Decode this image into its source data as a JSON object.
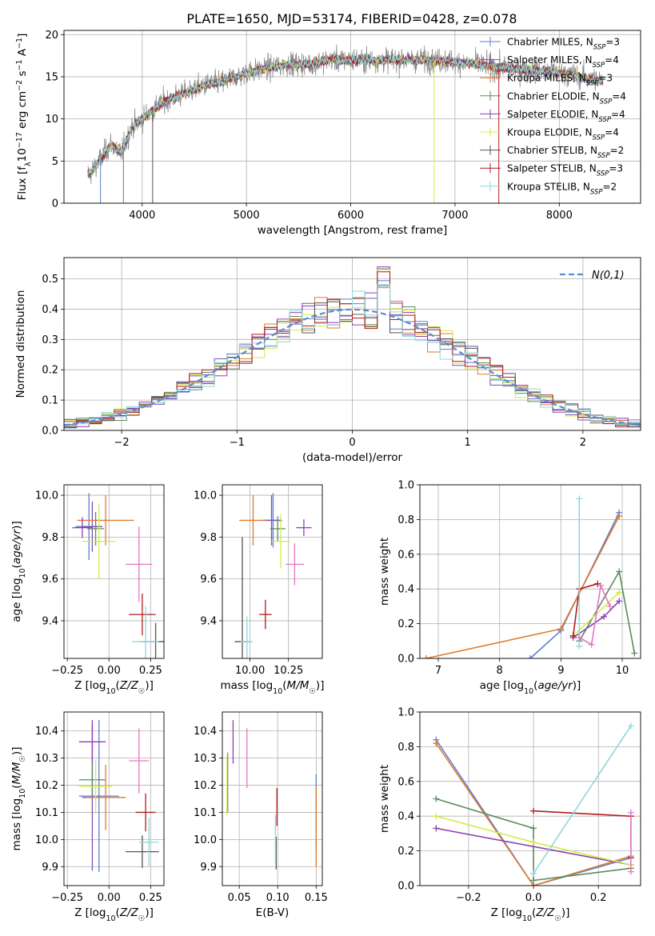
{
  "title": "PLATE=1650, MJD=53174, FIBERID=0428, z=0.078",
  "colors": {
    "Chabrier MILES": "#5b7fd0",
    "Salpeter MILES": "#7a52b3",
    "Kroupa MILES": "#e07b2b",
    "Chabrier ELODIE": "#5a8a5e",
    "Salpeter ELODIE": "#8e3fb1",
    "Kroupa ELODIE": "#d4ea4d",
    "Chabrier STELIB": "#555555",
    "Salpeter STELIB": "#b11c1c",
    "Kroupa STELIB": "#8fd8dc",
    "pink": "#e377c2",
    "normal": "#5b8ad0",
    "data": "#8a8a8a"
  },
  "chart_data": [
    {
      "id": "spectrum",
      "type": "line",
      "xlabel": "wavelength [Angstrom, rest frame]",
      "ylabel": "Flux [f_λ10^-17 erg cm^-2 s^-1 A^-1]",
      "xlim": [
        3250,
        8780
      ],
      "ylim": [
        0,
        20.5
      ],
      "xticks": [
        4000,
        5000,
        6000,
        7000,
        8000
      ],
      "yticks": [
        0,
        5,
        10,
        15,
        20
      ],
      "legend_position": "right",
      "legend": [
        {
          "model": "Chabrier MILES",
          "nssp": "3"
        },
        {
          "model": "Salpeter MILES",
          "nssp": "4"
        },
        {
          "model": "Kroupa MILES",
          "nssp": "3"
        },
        {
          "model": "Chabrier ELODIE",
          "nssp": "4"
        },
        {
          "model": "Salpeter ELODIE",
          "nssp": "4"
        },
        {
          "model": "Kroupa ELODIE",
          "nssp": "4"
        },
        {
          "model": "Chabrier STELIB",
          "nssp": "2"
        },
        {
          "model": "Salpeter STELIB",
          "nssp": "3"
        },
        {
          "model": "Kroupa STELIB",
          "nssp": "2"
        }
      ],
      "continuum": [
        [
          3500,
          3.5
        ],
        [
          3700,
          7
        ],
        [
          3800,
          6
        ],
        [
          3900,
          9
        ],
        [
          4000,
          10
        ],
        [
          4100,
          11
        ],
        [
          4200,
          12
        ],
        [
          4400,
          13
        ],
        [
          4600,
          14
        ],
        [
          4800,
          14.5
        ],
        [
          5000,
          15.5
        ],
        [
          5200,
          16
        ],
        [
          5400,
          16.5
        ],
        [
          5600,
          16.5
        ],
        [
          5800,
          17
        ],
        [
          6000,
          17
        ],
        [
          6200,
          17
        ],
        [
          6500,
          17
        ],
        [
          6800,
          17
        ],
        [
          7200,
          16.5
        ],
        [
          7500,
          16
        ],
        [
          8000,
          15.5
        ],
        [
          8400,
          14.5
        ]
      ],
      "drops": [
        [
          3600,
          0
        ],
        [
          3820,
          0
        ],
        [
          4100,
          0
        ],
        [
          6800,
          0
        ],
        [
          7420,
          0
        ]
      ]
    },
    {
      "id": "residuals",
      "type": "histogram",
      "xlabel": "(data-model)/error",
      "ylabel": "Normed distribution",
      "xlim": [
        -2.5,
        2.5
      ],
      "ylim": [
        0,
        0.57
      ],
      "xticks": [
        -2,
        -1,
        0,
        1,
        2
      ],
      "yticks": [
        0.0,
        0.1,
        0.2,
        0.3,
        0.4,
        0.5
      ],
      "legend_label": "N(0,1)",
      "legend_position": "top-right",
      "bins": 46
    },
    {
      "id": "age-Z",
      "type": "errorbar",
      "xlabel": "Z [log10(Z/Z☉)]",
      "ylabel": "age  [log10(age/yr)]",
      "xlim": [
        -0.27,
        0.33
      ],
      "ylim": [
        9.22,
        10.05
      ],
      "xticks": [
        -0.25,
        0.0,
        0.25
      ],
      "yticks": [
        9.4,
        9.6,
        9.8,
        10.0
      ],
      "points": [
        {
          "model": "Chabrier MILES",
          "x": -0.12,
          "y": 9.85,
          "xerr": 0.08,
          "yerr": 0.16
        },
        {
          "model": "Salpeter MILES",
          "x": -0.1,
          "y": 9.85,
          "xerr": 0.06,
          "yerr": 0.12
        },
        {
          "model": "Kroupa MILES",
          "x": -0.02,
          "y": 9.88,
          "xerr": 0.17,
          "yerr": 0.12
        },
        {
          "model": "Chabrier ELODIE",
          "x": -0.08,
          "y": 9.84,
          "xerr": 0.05,
          "yerr": 0.08
        },
        {
          "model": "Salpeter ELODIE",
          "x": -0.16,
          "y": 9.845,
          "xerr": 0.06,
          "yerr": 0.05
        },
        {
          "model": "Kroupa ELODIE",
          "x": -0.06,
          "y": 9.78,
          "xerr": 0.1,
          "yerr": 0.18
        },
        {
          "model": "Chabrier STELIB",
          "x": 0.28,
          "y": 9.3,
          "xerr": 0.09,
          "yerr": 0.09
        },
        {
          "model": "Salpeter STELIB",
          "x": 0.2,
          "y": 9.43,
          "xerr": 0.08,
          "yerr": 0.1
        },
        {
          "model": "Kroupa STELIB",
          "x": 0.22,
          "y": 9.3,
          "xerr": 0.08,
          "yerr": 0.17
        },
        {
          "model": "pink",
          "x": 0.18,
          "y": 9.67,
          "xerr": 0.08,
          "yerr": 0.18
        }
      ]
    },
    {
      "id": "age-mass",
      "type": "errorbar",
      "xlabel": "mass [log10(M/M☉)]",
      "ylabel": "",
      "xlim": [
        9.82,
        10.47
      ],
      "ylim": [
        9.22,
        10.05
      ],
      "xticks": [
        10.0,
        10.25
      ],
      "yticks": [
        9.4,
        9.6,
        9.8,
        10.0
      ],
      "points": [
        {
          "model": "Chabrier MILES",
          "x": 10.15,
          "y": 9.88,
          "xerr": 0.06,
          "yerr": 0.13
        },
        {
          "model": "Salpeter MILES",
          "x": 10.14,
          "y": 9.88,
          "xerr": 0.06,
          "yerr": 0.12
        },
        {
          "model": "Kroupa MILES",
          "x": 10.02,
          "y": 9.88,
          "xerr": 0.09,
          "yerr": 0.12
        },
        {
          "model": "Chabrier ELODIE",
          "x": 10.18,
          "y": 9.84,
          "xerr": 0.05,
          "yerr": 0.06
        },
        {
          "model": "Salpeter ELODIE",
          "x": 10.35,
          "y": 9.845,
          "xerr": 0.05,
          "yerr": 0.04
        },
        {
          "model": "Kroupa ELODIE",
          "x": 10.2,
          "y": 9.78,
          "xerr": 0.06,
          "yerr": 0.13
        },
        {
          "model": "Chabrier STELIB",
          "x": 9.95,
          "y": 9.3,
          "xerr": 0.05,
          "yerr": 0.5
        },
        {
          "model": "Salpeter STELIB",
          "x": 10.1,
          "y": 9.43,
          "xerr": 0.04,
          "yerr": 0.07
        },
        {
          "model": "Kroupa STELIB",
          "x": 9.98,
          "y": 9.3,
          "xerr": 0.04,
          "yerr": 0.12
        },
        {
          "model": "pink",
          "x": 10.29,
          "y": 9.67,
          "xerr": 0.06,
          "yerr": 0.1
        }
      ]
    },
    {
      "id": "weight-age",
      "type": "line",
      "xlabel": "age  [log10(age/yr)]",
      "ylabel": "mass weight",
      "xlim": [
        6.7,
        10.3
      ],
      "ylim": [
        0,
        1.0
      ],
      "xticks": [
        7,
        8,
        9,
        10
      ],
      "yticks": [
        0.0,
        0.2,
        0.4,
        0.6,
        0.8,
        1.0
      ],
      "series": [
        {
          "model": "Chabrier MILES",
          "x": [
            8.5,
            9.0,
            9.95
          ],
          "y": [
            0.0,
            0.16,
            0.84
          ]
        },
        {
          "model": "Kroupa MILES",
          "x": [
            6.8,
            9.0,
            9.95
          ],
          "y": [
            0.0,
            0.17,
            0.82
          ]
        },
        {
          "model": "Chabrier ELODIE",
          "x": [
            9.3,
            9.95,
            10.2
          ],
          "y": [
            0.1,
            0.5,
            0.03
          ]
        },
        {
          "model": "Salpeter ELODIE",
          "x": [
            9.2,
            9.7,
            9.95
          ],
          "y": [
            0.12,
            0.24,
            0.33
          ]
        },
        {
          "model": "Kroupa ELODIE",
          "x": [
            9.2,
            9.95
          ],
          "y": [
            0.13,
            0.38
          ]
        },
        {
          "model": "Salpeter STELIB",
          "x": [
            9.2,
            9.3,
            9.6
          ],
          "y": [
            0.13,
            0.4,
            0.43
          ]
        },
        {
          "model": "Kroupa STELIB",
          "x": [
            9.3,
            9.3
          ],
          "y": [
            0.07,
            0.92
          ]
        },
        {
          "model": "pink",
          "x": [
            9.3,
            9.5,
            9.65,
            9.8
          ],
          "y": [
            0.12,
            0.08,
            0.42,
            0.3
          ]
        }
      ]
    },
    {
      "id": "mass-Z",
      "type": "errorbar",
      "xlabel": "Z [log10(Z/Z☉)]",
      "ylabel": "mass [log10(M/M☉)]",
      "xlim": [
        -0.27,
        0.33
      ],
      "ylim": [
        9.83,
        10.47
      ],
      "xticks": [
        -0.25,
        0.0,
        0.25
      ],
      "yticks": [
        9.9,
        10.0,
        10.1,
        10.2,
        10.3,
        10.4
      ],
      "points": [
        {
          "model": "Chabrier MILES",
          "x": -0.06,
          "y": 10.16,
          "xerr": 0.12,
          "yerr": 0.28
        },
        {
          "model": "Salpeter MILES",
          "x": -0.1,
          "y": 10.155,
          "xerr": 0.06,
          "yerr": 0.27
        },
        {
          "model": "Kroupa MILES",
          "x": -0.02,
          "y": 10.155,
          "xerr": 0.12,
          "yerr": 0.12
        },
        {
          "model": "Chabrier ELODIE",
          "x": -0.1,
          "y": 10.22,
          "xerr": 0.08,
          "yerr": 0.06
        },
        {
          "model": "Salpeter ELODIE",
          "x": -0.1,
          "y": 10.36,
          "xerr": 0.08,
          "yerr": 0.08
        },
        {
          "model": "Kroupa ELODIE",
          "x": -0.08,
          "y": 10.195,
          "xerr": 0.1,
          "yerr": 0.1
        },
        {
          "model": "Chabrier STELIB",
          "x": 0.2,
          "y": 9.955,
          "xerr": 0.1,
          "yerr": 0.06
        },
        {
          "model": "Salpeter STELIB",
          "x": 0.22,
          "y": 10.1,
          "xerr": 0.06,
          "yerr": 0.07
        },
        {
          "model": "Kroupa STELIB",
          "x": 0.24,
          "y": 9.99,
          "xerr": 0.06,
          "yerr": 0.09
        },
        {
          "model": "pink",
          "x": 0.18,
          "y": 10.29,
          "xerr": 0.06,
          "yerr": 0.12
        }
      ]
    },
    {
      "id": "mass-EBV",
      "type": "errorbar",
      "xlabel": "E(B-V)",
      "ylabel": "",
      "xlim": [
        0.028,
        0.158
      ],
      "ylim": [
        9.83,
        10.47
      ],
      "xticks": [
        0.05,
        0.1,
        0.15
      ],
      "yticks": [
        9.9,
        10.0,
        10.1,
        10.2,
        10.3,
        10.4
      ],
      "points": [
        {
          "model": "Chabrier MILES",
          "x": 0.15,
          "y": 10.1,
          "xerr": 0,
          "yerr": 0.14
        },
        {
          "model": "Kroupa MILES",
          "x": 0.15,
          "y": 10.05,
          "xerr": 0,
          "yerr": 0.15
        },
        {
          "model": "Chabrier ELODIE",
          "x": 0.035,
          "y": 10.21,
          "xerr": 0,
          "yerr": 0.11
        },
        {
          "model": "Salpeter ELODIE",
          "x": 0.042,
          "y": 10.36,
          "xerr": 0,
          "yerr": 0.08
        },
        {
          "model": "Kroupa ELODIE",
          "x": 0.034,
          "y": 10.2,
          "xerr": 0,
          "yerr": 0.11
        },
        {
          "model": "Chabrier STELIB",
          "x": 0.098,
          "y": 9.95,
          "xerr": 0,
          "yerr": 0.06
        },
        {
          "model": "Salpeter STELIB",
          "x": 0.099,
          "y": 10.12,
          "xerr": 0,
          "yerr": 0.07
        },
        {
          "model": "Kroupa STELIB",
          "x": 0.097,
          "y": 10.0,
          "xerr": 0,
          "yerr": 0.09
        },
        {
          "model": "pink",
          "x": 0.06,
          "y": 10.3,
          "xerr": 0,
          "yerr": 0.11
        }
      ]
    },
    {
      "id": "weight-Z",
      "type": "line",
      "xlabel": "Z [log10(Z/Z☉)]",
      "ylabel": "mass weight",
      "xlim": [
        -0.35,
        0.33
      ],
      "ylim": [
        0,
        1.0
      ],
      "xticks": [
        -0.2,
        0.0,
        0.2
      ],
      "yticks": [
        0.0,
        0.2,
        0.4,
        0.6,
        0.8,
        1.0
      ],
      "series": [
        {
          "model": "Chabrier MILES",
          "x": [
            -0.3,
            0.0,
            0.3
          ],
          "y": [
            0.84,
            0.0,
            0.16
          ]
        },
        {
          "model": "Kroupa MILES",
          "x": [
            -0.3,
            0.0,
            0.3
          ],
          "y": [
            0.82,
            0.0,
            0.17
          ]
        },
        {
          "model": "Chabrier ELODIE",
          "x": [
            -0.3,
            0.0,
            0.0,
            0.3
          ],
          "y": [
            0.5,
            0.33,
            0.03,
            0.1
          ]
        },
        {
          "model": "Salpeter ELODIE",
          "x": [
            -0.3,
            0.3
          ],
          "y": [
            0.33,
            0.12
          ]
        },
        {
          "model": "Kroupa ELODIE",
          "x": [
            -0.3,
            0.0,
            0.3
          ],
          "y": [
            0.4,
            0.25,
            0.12
          ]
        },
        {
          "model": "Salpeter STELIB",
          "x": [
            0.0,
            0.3,
            0.3
          ],
          "y": [
            0.43,
            0.4,
            0.16
          ]
        },
        {
          "model": "Kroupa STELIB",
          "x": [
            0.0,
            0.3
          ],
          "y": [
            0.07,
            0.92
          ]
        },
        {
          "model": "pink",
          "x": [
            0.3,
            0.3
          ],
          "y": [
            0.42,
            0.08
          ]
        }
      ]
    }
  ]
}
